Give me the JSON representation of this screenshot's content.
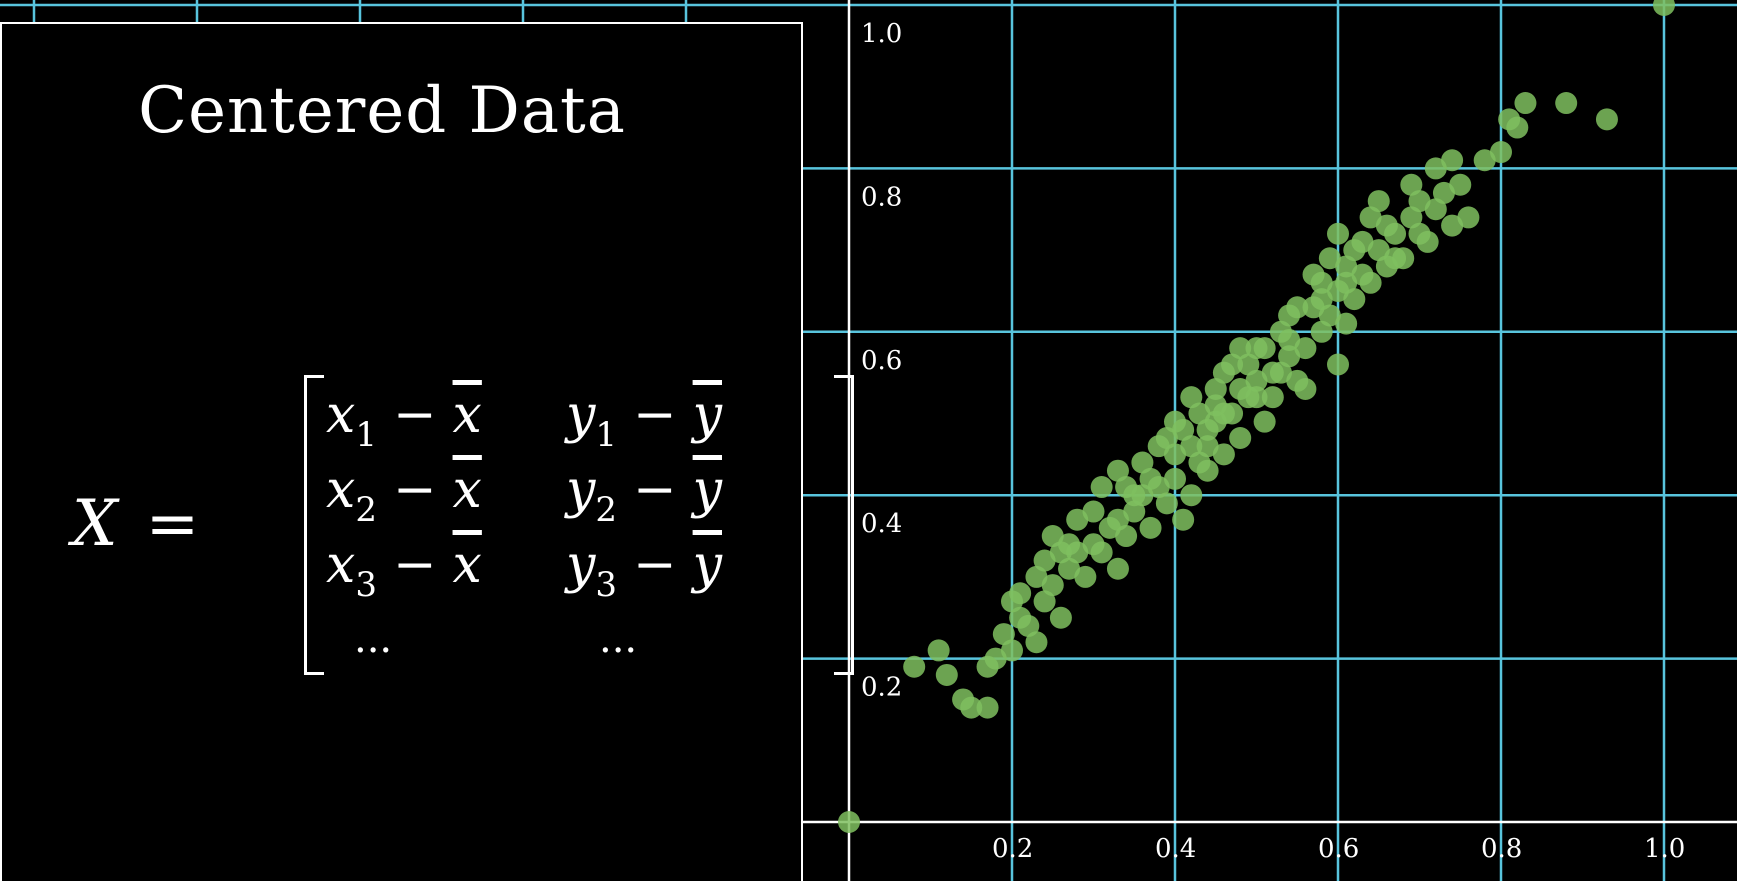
{
  "panel": {
    "title": "Centered Data",
    "formula": {
      "lhs_var": "X",
      "equals": "=",
      "minus": "−",
      "rows": [
        {
          "x": "x",
          "x_sub": "1",
          "x_mean": "x",
          "y": "y",
          "y_sub": "1",
          "y_mean": "y"
        },
        {
          "x": "x",
          "x_sub": "2",
          "x_mean": "x",
          "y": "y",
          "y_sub": "2",
          "y_mean": "y"
        },
        {
          "x": "x",
          "x_sub": "3",
          "x_mean": "x",
          "y": "y",
          "y_sub": "3",
          "y_mean": "y"
        }
      ],
      "ellipsis": "..."
    }
  },
  "chart_data": {
    "type": "scatter",
    "title": "",
    "xlabel": "",
    "ylabel": "",
    "xlim": [
      0,
      1.05
    ],
    "ylim": [
      0,
      1.0
    ],
    "xticks": [
      "0.2",
      "0.4",
      "0.6",
      "0.8",
      "1.0"
    ],
    "yticks": [
      "0.2",
      "0.4",
      "0.6",
      "0.8",
      "1.0"
    ],
    "grid": true,
    "colors": {
      "point": "#7fbf5f",
      "grid": "#58c4dd",
      "axis": "#ffffff"
    },
    "points": [
      [
        0.0,
        0.0
      ],
      [
        1.0,
        1.0
      ],
      [
        0.88,
        0.88
      ],
      [
        0.93,
        0.86
      ],
      [
        0.08,
        0.19
      ],
      [
        0.11,
        0.21
      ],
      [
        0.12,
        0.18
      ],
      [
        0.14,
        0.15
      ],
      [
        0.15,
        0.14
      ],
      [
        0.17,
        0.14
      ],
      [
        0.17,
        0.19
      ],
      [
        0.18,
        0.2
      ],
      [
        0.2,
        0.21
      ],
      [
        0.2,
        0.27
      ],
      [
        0.21,
        0.28
      ],
      [
        0.22,
        0.24
      ],
      [
        0.23,
        0.22
      ],
      [
        0.24,
        0.27
      ],
      [
        0.23,
        0.3
      ],
      [
        0.25,
        0.29
      ],
      [
        0.24,
        0.32
      ],
      [
        0.26,
        0.25
      ],
      [
        0.27,
        0.31
      ],
      [
        0.28,
        0.33
      ],
      [
        0.29,
        0.3
      ],
      [
        0.3,
        0.34
      ],
      [
        0.28,
        0.37
      ],
      [
        0.31,
        0.33
      ],
      [
        0.32,
        0.36
      ],
      [
        0.33,
        0.31
      ],
      [
        0.31,
        0.41
      ],
      [
        0.34,
        0.35
      ],
      [
        0.35,
        0.38
      ],
      [
        0.33,
        0.43
      ],
      [
        0.36,
        0.4
      ],
      [
        0.37,
        0.36
      ],
      [
        0.36,
        0.44
      ],
      [
        0.38,
        0.41
      ],
      [
        0.39,
        0.39
      ],
      [
        0.4,
        0.45
      ],
      [
        0.4,
        0.42
      ],
      [
        0.41,
        0.48
      ],
      [
        0.42,
        0.4
      ],
      [
        0.41,
        0.37
      ],
      [
        0.42,
        0.46
      ],
      [
        0.43,
        0.5
      ],
      [
        0.44,
        0.43
      ],
      [
        0.44,
        0.48
      ],
      [
        0.45,
        0.53
      ],
      [
        0.46,
        0.45
      ],
      [
        0.45,
        0.51
      ],
      [
        0.46,
        0.55
      ],
      [
        0.47,
        0.5
      ],
      [
        0.48,
        0.53
      ],
      [
        0.48,
        0.47
      ],
      [
        0.49,
        0.56
      ],
      [
        0.5,
        0.52
      ],
      [
        0.51,
        0.49
      ],
      [
        0.5,
        0.58
      ],
      [
        0.52,
        0.55
      ],
      [
        0.53,
        0.6
      ],
      [
        0.52,
        0.52
      ],
      [
        0.54,
        0.57
      ],
      [
        0.55,
        0.54
      ],
      [
        0.54,
        0.62
      ],
      [
        0.56,
        0.58
      ],
      [
        0.57,
        0.63
      ],
      [
        0.56,
        0.53
      ],
      [
        0.58,
        0.6
      ],
      [
        0.58,
        0.66
      ],
      [
        0.59,
        0.62
      ],
      [
        0.6,
        0.65
      ],
      [
        0.61,
        0.61
      ],
      [
        0.6,
        0.56
      ],
      [
        0.61,
        0.68
      ],
      [
        0.62,
        0.64
      ],
      [
        0.63,
        0.67
      ],
      [
        0.63,
        0.71
      ],
      [
        0.64,
        0.66
      ],
      [
        0.65,
        0.7
      ],
      [
        0.66,
        0.68
      ],
      [
        0.66,
        0.73
      ],
      [
        0.67,
        0.72
      ],
      [
        0.68,
        0.69
      ],
      [
        0.69,
        0.74
      ],
      [
        0.7,
        0.76
      ],
      [
        0.71,
        0.71
      ],
      [
        0.72,
        0.75
      ],
      [
        0.73,
        0.77
      ],
      [
        0.74,
        0.73
      ],
      [
        0.75,
        0.78
      ],
      [
        0.76,
        0.74
      ],
      [
        0.78,
        0.81
      ],
      [
        0.8,
        0.82
      ],
      [
        0.81,
        0.86
      ],
      [
        0.82,
        0.85
      ],
      [
        0.83,
        0.88
      ],
      [
        0.46,
        0.5
      ],
      [
        0.47,
        0.56
      ],
      [
        0.49,
        0.52
      ],
      [
        0.44,
        0.46
      ],
      [
        0.43,
        0.44
      ],
      [
        0.38,
        0.46
      ],
      [
        0.37,
        0.42
      ],
      [
        0.35,
        0.4
      ],
      [
        0.39,
        0.47
      ],
      [
        0.42,
        0.52
      ],
      [
        0.51,
        0.58
      ],
      [
        0.53,
        0.55
      ],
      [
        0.55,
        0.63
      ],
      [
        0.59,
        0.69
      ],
      [
        0.62,
        0.7
      ],
      [
        0.64,
        0.74
      ],
      [
        0.69,
        0.78
      ],
      [
        0.72,
        0.8
      ],
      [
        0.74,
        0.81
      ],
      [
        0.3,
        0.38
      ],
      [
        0.27,
        0.34
      ],
      [
        0.25,
        0.35
      ],
      [
        0.57,
        0.67
      ],
      [
        0.6,
        0.72
      ],
      [
        0.65,
        0.76
      ],
      [
        0.19,
        0.23
      ],
      [
        0.21,
        0.25
      ],
      [
        0.26,
        0.33
      ],
      [
        0.48,
        0.58
      ],
      [
        0.45,
        0.49
      ],
      [
        0.4,
        0.49
      ],
      [
        0.5,
        0.54
      ],
      [
        0.54,
        0.59
      ],
      [
        0.58,
        0.64
      ],
      [
        0.61,
        0.66
      ],
      [
        0.67,
        0.69
      ],
      [
        0.7,
        0.72
      ],
      [
        0.33,
        0.37
      ],
      [
        0.34,
        0.41
      ]
    ]
  }
}
